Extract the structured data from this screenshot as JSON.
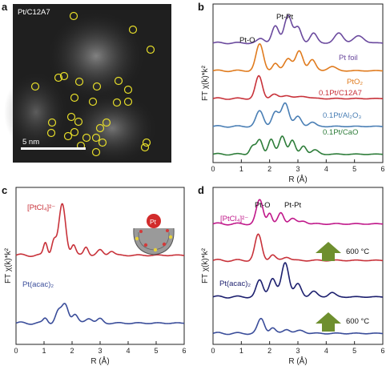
{
  "panels": {
    "a": {
      "label": "a",
      "title": "Pt/C12A7",
      "scalebar": "5 nm"
    },
    "b": {
      "label": "b",
      "xlabel": "R (Å)",
      "ylabel": "FT χ(k)*k²",
      "xticks": [
        "0",
        "1",
        "2",
        "3",
        "4",
        "5",
        "6"
      ],
      "ann_ptpt": "Pt-Pt",
      "ann_pto": "Pt-O"
    },
    "c": {
      "label": "c",
      "xlabel": "R (Å)",
      "ylabel": "FT χ(k)*k²",
      "xticks": [
        "0",
        "1",
        "2",
        "3",
        "4",
        "5",
        "6"
      ],
      "inset_pt": "Pt"
    },
    "d": {
      "label": "d",
      "xlabel": "R (Å)",
      "ylabel": "FT χ(k)*k²",
      "xticks": [
        "0",
        "1",
        "2",
        "3",
        "4",
        "5",
        "6"
      ],
      "ann_pto": "Pt-O",
      "ann_ptpt": "Pt-Pt",
      "arrow1": "600 °C",
      "arrow2": "600 °C"
    }
  },
  "chart_data": [
    {
      "panel": "b",
      "type": "line",
      "xlabel": "R (Å)",
      "ylabel": "FT χ(k)*k²",
      "xlim": [
        0,
        6
      ],
      "series": [
        {
          "name": "Pt foil",
          "color": "#6b4a9e",
          "offset": 4.0,
          "amp": 1.0,
          "peaks": [
            [
              1.7,
              0.15,
              0.13
            ],
            [
              2.2,
              0.6,
              0.12
            ],
            [
              2.65,
              1.0,
              0.13
            ],
            [
              3.0,
              0.55,
              0.12
            ],
            [
              3.55,
              0.35,
              0.12
            ],
            [
              4.45,
              0.35,
              0.15
            ],
            [
              5.15,
              0.25,
              0.18
            ]
          ]
        },
        {
          "name": "PtO₂",
          "color": "#e07b1e",
          "offset": 3.0,
          "amp": 1.0,
          "peaks": [
            [
              1.65,
              0.95,
              0.13
            ],
            [
              2.2,
              0.25,
              0.1
            ],
            [
              2.65,
              0.45,
              0.13
            ],
            [
              3.05,
              0.7,
              0.13
            ],
            [
              3.5,
              0.4,
              0.12
            ],
            [
              4.2,
              0.15,
              0.15
            ]
          ]
        },
        {
          "name": "0.1Pt/C12A7",
          "color": "#c8323a",
          "offset": 2.0,
          "amp": 1.0,
          "peaks": [
            [
              1.62,
              0.8,
              0.12
            ],
            [
              2.15,
              0.15,
              0.12
            ],
            [
              2.6,
              0.12,
              0.15
            ],
            [
              3.2,
              0.08,
              0.2
            ]
          ]
        },
        {
          "name": "0.1Pt/Al₂O₃",
          "color": "#4a7fb5",
          "offset": 1.0,
          "amp": 1.0,
          "peaks": [
            [
              1.65,
              0.55,
              0.13
            ],
            [
              2.2,
              0.5,
              0.12
            ],
            [
              2.55,
              0.85,
              0.13
            ],
            [
              3.0,
              0.35,
              0.12
            ],
            [
              3.5,
              0.15,
              0.12
            ]
          ]
        },
        {
          "name": "0.1Pt/CaO",
          "color": "#2e7d3a",
          "offset": 0.0,
          "amp": 1.0,
          "peaks": [
            [
              1.4,
              0.3,
              0.1
            ],
            [
              1.65,
              0.5,
              0.1
            ],
            [
              2.05,
              0.55,
              0.1
            ],
            [
              2.45,
              0.65,
              0.11
            ],
            [
              2.8,
              0.5,
              0.1
            ],
            [
              3.2,
              0.3,
              0.1
            ],
            [
              3.6,
              0.15,
              0.12
            ]
          ]
        }
      ]
    },
    {
      "panel": "c",
      "type": "line",
      "xlabel": "R (Å)",
      "ylabel": "FT χ(k)*k²",
      "xlim": [
        0,
        6
      ],
      "series": [
        {
          "name": "[PtCl₄]²⁻",
          "color": "#c8323a",
          "offset": 1.6,
          "amp": 1.0,
          "peaks": [
            [
              1.05,
              0.3,
              0.07
            ],
            [
              1.35,
              0.35,
              0.08
            ],
            [
              1.65,
              1.2,
              0.12
            ],
            [
              2.05,
              0.25,
              0.08
            ],
            [
              2.5,
              0.2,
              0.08
            ],
            [
              3.0,
              0.12,
              0.1
            ],
            [
              3.4,
              0.1,
              0.1
            ]
          ]
        },
        {
          "name": "Pt(acac)₂",
          "color": "#3a4d9a",
          "offset": 0.0,
          "amp": 1.0,
          "peaks": [
            [
              1.05,
              0.12,
              0.08
            ],
            [
              1.5,
              0.25,
              0.1
            ],
            [
              1.75,
              0.45,
              0.12
            ],
            [
              2.1,
              0.2,
              0.1
            ],
            [
              2.6,
              0.12,
              0.12
            ],
            [
              3.0,
              0.1,
              0.1
            ]
          ]
        }
      ]
    },
    {
      "panel": "d",
      "type": "line",
      "xlabel": "R (Å)",
      "ylabel": "FT χ(k)*k²",
      "xlim": [
        0,
        6
      ],
      "series": [
        {
          "name": "[PtCl₄]²⁻",
          "color": "#c0188a",
          "offset": 3.0,
          "amp": 1.0,
          "peaks": [
            [
              1.65,
              0.65,
              0.12
            ],
            [
              2.0,
              0.3,
              0.08
            ],
            [
              2.4,
              0.3,
              0.1
            ],
            [
              2.8,
              0.15,
              0.12
            ],
            [
              3.2,
              0.08,
              0.12
            ]
          ]
        },
        {
          "name": "",
          "color": "#c8323a",
          "offset": 2.0,
          "amp": 1.0,
          "peaks": [
            [
              1.6,
              0.7,
              0.12
            ],
            [
              2.1,
              0.15,
              0.1
            ],
            [
              2.6,
              0.1,
              0.12
            ]
          ]
        },
        {
          "name": "Pt(acac)₂",
          "color": "#1c1f6e",
          "offset": 1.0,
          "amp": 1.0,
          "peaks": [
            [
              1.65,
              0.45,
              0.12
            ],
            [
              2.1,
              0.5,
              0.12
            ],
            [
              2.55,
              0.95,
              0.13
            ],
            [
              3.0,
              0.35,
              0.12
            ],
            [
              3.55,
              0.15,
              0.12
            ],
            [
              4.2,
              0.12,
              0.12
            ]
          ]
        },
        {
          "name": "",
          "color": "#3a4d9a",
          "offset": 0.0,
          "amp": 1.0,
          "peaks": [
            [
              1.7,
              0.4,
              0.12
            ],
            [
              2.1,
              0.15,
              0.1
            ],
            [
              2.6,
              0.12,
              0.12
            ],
            [
              3.1,
              0.08,
              0.15
            ]
          ]
        }
      ]
    }
  ]
}
